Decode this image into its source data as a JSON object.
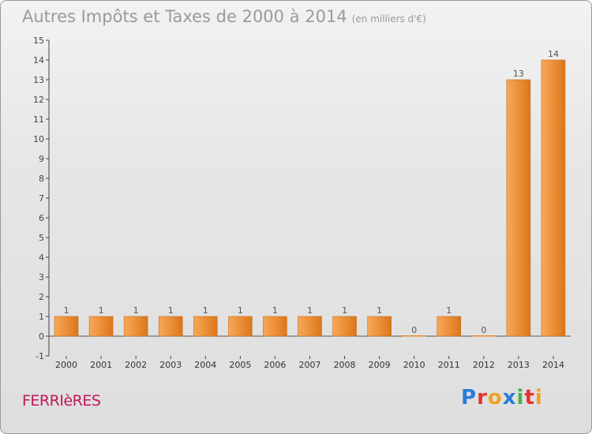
{
  "header": {
    "title": "Autres Impôts et Taxes de 2000 à 2014",
    "unit": "(en milliers d'€)"
  },
  "footer": {
    "commune": "FERRIèRES",
    "logo_text": "Proxiti",
    "logo_colors": [
      "#2b7bd6",
      "#e3342f",
      "#f0a020",
      "#2b7bd6",
      "#4caf50",
      "#e3342f",
      "#f0a020"
    ]
  },
  "chart_data": {
    "type": "bar",
    "title": "Autres Impôts et Taxes de 2000 à 2014",
    "subtitle": "(en milliers d'€)",
    "categories": [
      "2000",
      "2001",
      "2002",
      "2003",
      "2004",
      "2005",
      "2006",
      "2007",
      "2008",
      "2009",
      "2010",
      "2011",
      "2012",
      "2013",
      "2014"
    ],
    "values": [
      1,
      1,
      1,
      1,
      1,
      1,
      1,
      1,
      1,
      1,
      0,
      1,
      0,
      13,
      14
    ],
    "data_labels": [
      "1",
      "1",
      "1",
      "1",
      "1",
      "1",
      "1",
      "1",
      "1",
      "1",
      "0",
      "1",
      "0",
      "13",
      "14"
    ],
    "y_ticks": [
      "-1",
      "0",
      "1",
      "2",
      "3",
      "4",
      "5",
      "6",
      "7",
      "8",
      "9",
      "10",
      "11",
      "12",
      "13",
      "14",
      "15"
    ],
    "ylim": [
      -1,
      15
    ],
    "grid": false,
    "bar_color": "#e8892f",
    "label_color": "#555555"
  }
}
